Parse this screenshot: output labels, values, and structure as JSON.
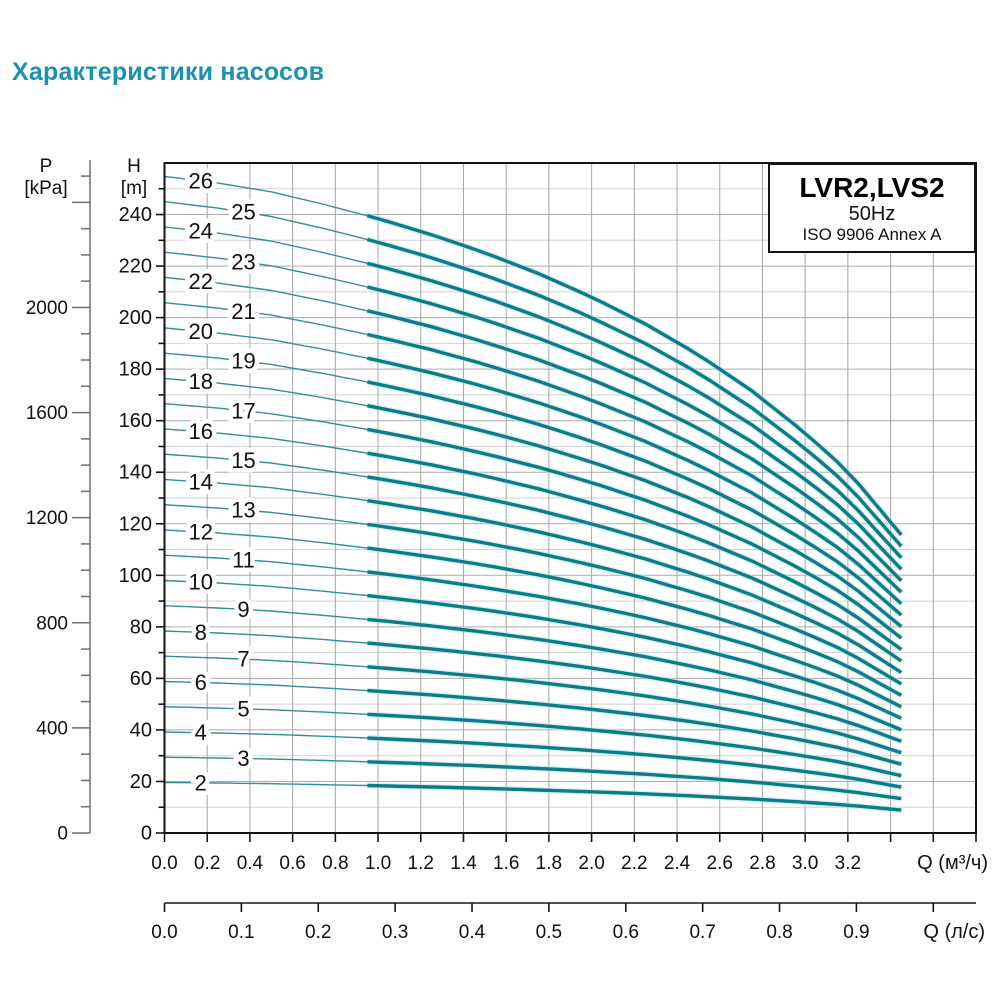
{
  "page": {
    "title": "Характеристики насосов"
  },
  "chart_data": {
    "type": "line",
    "title": "LVR2,LVS2",
    "legend": {
      "model": "LVR2,LVS2",
      "frequency": "50Hz",
      "standard": "ISO 9906 Annex A"
    },
    "x_axis_primary": {
      "label": "Q (м³/ч)",
      "min": 0,
      "max": 3.8,
      "tick_step": 0.2,
      "tick_labels": [
        "0.0",
        "0.2",
        "0.4",
        "0.6",
        "0.8",
        "1.0",
        "1.2",
        "1.4",
        "1.6",
        "1.8",
        "2.0",
        "2.2",
        "2.4",
        "2.6",
        "2.8",
        "3.0",
        "3.2"
      ]
    },
    "x_axis_secondary": {
      "label": "Q (л/с)",
      "tick_step": 0.1,
      "m3h_per_unit": 3.6,
      "tick_labels": [
        "0.0",
        "0.1",
        "0.2",
        "0.3",
        "0.4",
        "0.5",
        "0.6",
        "0.7",
        "0.8",
        "0.9"
      ]
    },
    "y_axis_head": {
      "name_line1": "H",
      "name_line2": "[m]",
      "min": 0,
      "max": 260,
      "grid_minor_step": 10,
      "label_step": 20,
      "tick_labels": [
        "0",
        "20",
        "40",
        "60",
        "80",
        "100",
        "120",
        "140",
        "160",
        "180",
        "200",
        "220",
        "240"
      ]
    },
    "y_axis_pressure": {
      "name_line1": "P",
      "name_line2": "[kPa]",
      "label_step": 400,
      "minor_step": 100,
      "max_minor": 2500,
      "kpa_per_m": 9.80665,
      "tick_labels": [
        "0",
        "400",
        "800",
        "1200",
        "1600",
        "2000"
      ]
    },
    "stages": [
      2,
      3,
      4,
      5,
      6,
      7,
      8,
      9,
      10,
      11,
      12,
      13,
      14,
      15,
      16,
      17,
      18,
      19,
      20,
      21,
      22,
      23,
      24,
      25,
      26
    ],
    "per_stage_head_curve": {
      "Q": [
        0,
        0.25,
        0.5,
        0.75,
        1.0,
        1.25,
        1.5,
        1.75,
        2.0,
        2.25,
        2.5,
        2.75,
        3.0,
        3.2,
        3.45
      ],
      "h": [
        9.8,
        9.7,
        9.57,
        9.38,
        9.17,
        8.93,
        8.66,
        8.35,
        8.0,
        7.6,
        7.14,
        6.6,
        5.97,
        5.4,
        4.45
      ]
    },
    "thin_range_Q": [
      0,
      1.0
    ],
    "thick_range_Q": [
      0.95,
      3.45
    ],
    "curve_label_Q_even": 0.17,
    "curve_label_Q_odd": 0.37,
    "colors": {
      "title": "#1a93b2",
      "curve": "#0c7c8a",
      "curve_thin": "#2f8f9c",
      "curve_halo": "#b8e4e6",
      "grid_minor": "#d2d2d2",
      "grid_major": "#ababab",
      "grid_vertical": "#a6a6a6",
      "axis": "#141414",
      "ruler": "#6e6e6e",
      "text": "#111111"
    }
  }
}
